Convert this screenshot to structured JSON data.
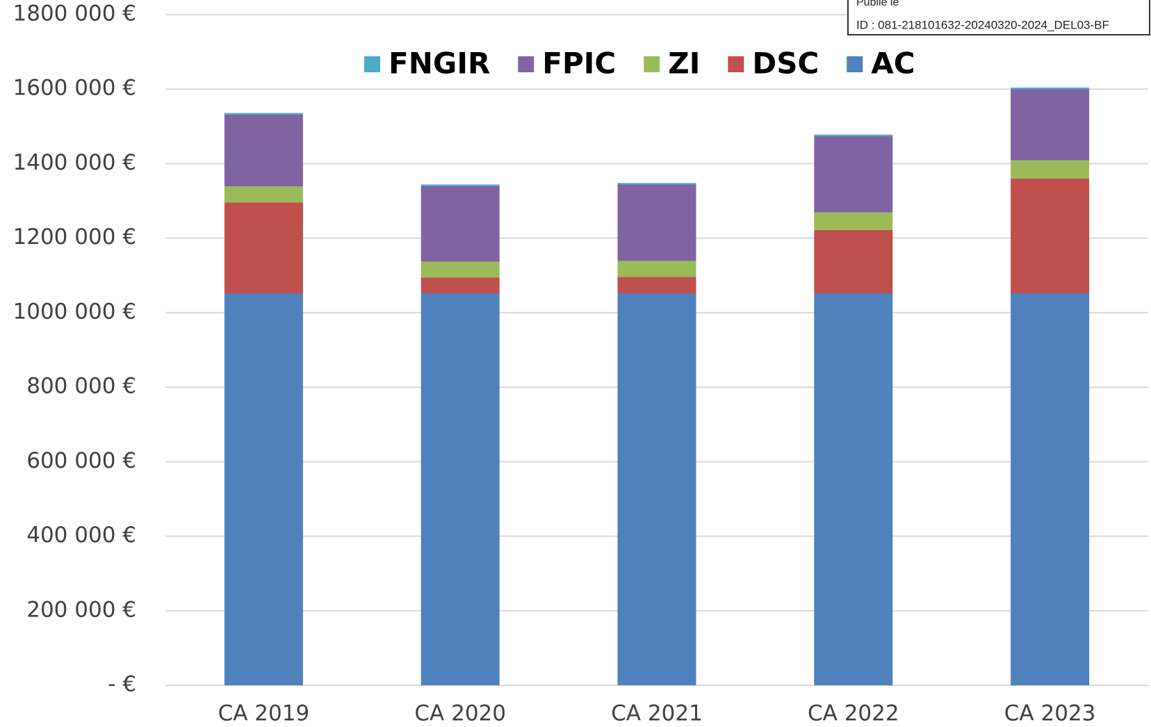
{
  "chart_data": {
    "type": "stacked_bar",
    "categories": [
      "CA 2019",
      "CA 2020",
      "CA 2021",
      "CA 2022",
      "CA 2023"
    ],
    "series": [
      {
        "name": "AC",
        "color": "#4f81bd",
        "values": [
          1052000,
          1052000,
          1052000,
          1052000,
          1052000
        ]
      },
      {
        "name": "DSC",
        "color": "#c0504d",
        "values": [
          244000,
          42000,
          44000,
          170000,
          308000
        ]
      },
      {
        "name": "ZI",
        "color": "#9bbb59",
        "values": [
          43000,
          43000,
          43000,
          47000,
          49000
        ]
      },
      {
        "name": "FPIC",
        "color": "#8064a2",
        "values": [
          193000,
          203000,
          205000,
          205000,
          191000
        ]
      },
      {
        "name": "FNGIR",
        "color": "#4bacc6",
        "values": [
          4000,
          4000,
          4000,
          4000,
          4000
        ]
      }
    ],
    "ylim": [
      0,
      1800000
    ],
    "yticks": [
      {
        "value": 0,
        "label": "-    €"
      },
      {
        "value": 200000,
        "label": "200 000 €"
      },
      {
        "value": 400000,
        "label": "400 000 €"
      },
      {
        "value": 600000,
        "label": "600 000 €"
      },
      {
        "value": 800000,
        "label": "800 000 €"
      },
      {
        "value": 1000000,
        "label": "1000 000 €"
      },
      {
        "value": 1200000,
        "label": "1200 000 €"
      },
      {
        "value": 1400000,
        "label": "1400 000 €"
      },
      {
        "value": 1600000,
        "label": "1600 000 €"
      },
      {
        "value": 1800000,
        "label": "1800 000 €"
      }
    ],
    "grid": true,
    "legend": "top",
    "stamp": [
      "Publié le",
      "ID : 081-218101632-20240320-2024_DEL03-BF"
    ]
  }
}
